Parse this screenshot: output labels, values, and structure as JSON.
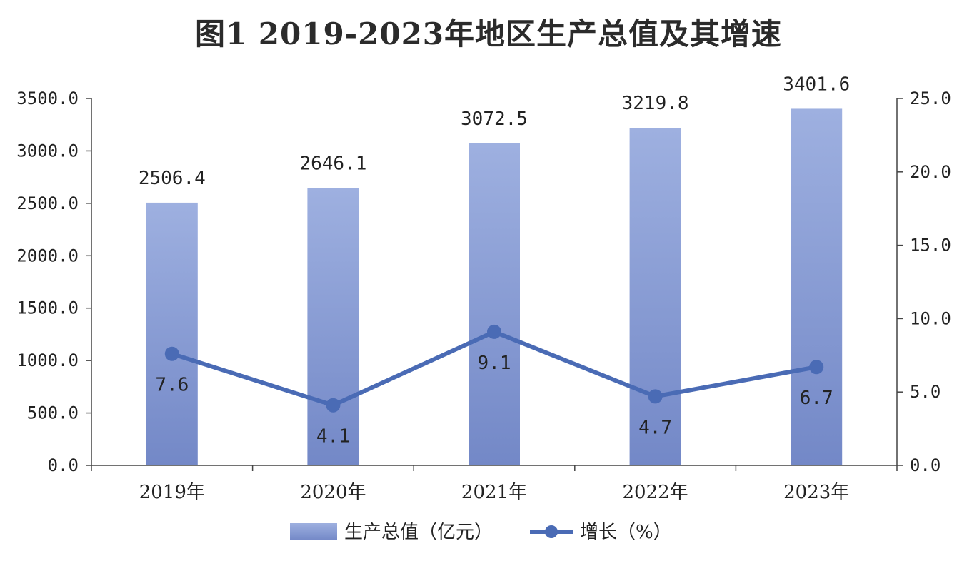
{
  "chart_data": {
    "type": "bar+line",
    "title": "图1 2019-2023年地区生产总值及其增速",
    "categories": [
      "2019年",
      "2020年",
      "2021年",
      "2022年",
      "2023年"
    ],
    "series": [
      {
        "name": "生产总值（亿元）",
        "type": "bar",
        "axis": "left",
        "values": [
          2506.4,
          2646.1,
          3072.5,
          3219.8,
          3401.6
        ],
        "labels": [
          "2506.4",
          "2646.1",
          "3072.5",
          "3219.8",
          "3401.6"
        ],
        "color": "#8b9fd4"
      },
      {
        "name": "增长（%）",
        "type": "line",
        "axis": "right",
        "values": [
          7.6,
          4.1,
          9.1,
          4.7,
          6.7
        ],
        "labels": [
          "7.6",
          "4.1",
          "9.1",
          "4.7",
          "6.7"
        ],
        "color": "#4a6bb5"
      }
    ],
    "y_left": {
      "min": 0,
      "max": 3500,
      "step": 500,
      "ticks": [
        "0.0",
        "500.0",
        "1000.0",
        "1500.0",
        "2000.0",
        "2500.0",
        "3000.0",
        "3500.0"
      ]
    },
    "y_right": {
      "min": 0,
      "max": 25,
      "step": 5,
      "ticks": [
        "0.0",
        "5.0",
        "10.0",
        "15.0",
        "20.0",
        "25.0"
      ]
    },
    "legend_position": "bottom-center",
    "grid": false
  }
}
